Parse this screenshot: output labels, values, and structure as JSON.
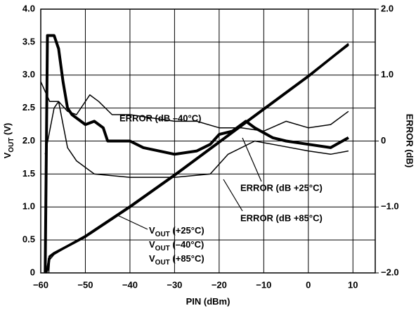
{
  "chart_data": {
    "type": "line",
    "x_label": {
      "main": "PIN",
      "rest": " (dBm)"
    },
    "y_label": {
      "main": "V",
      "sub": "OUT",
      "rest": " (V)"
    },
    "y2_label": "ERROR (dB)",
    "xlim": [
      -60,
      15
    ],
    "ylim": [
      0,
      4
    ],
    "y2lim": [
      -2,
      2
    ],
    "grid": true,
    "xticks": [
      {
        "value": -60,
        "label": "−60"
      },
      {
        "value": -50,
        "label": "−50"
      },
      {
        "value": -40,
        "label": "−40"
      },
      {
        "value": -30,
        "label": "−30"
      },
      {
        "value": -20,
        "label": "−20"
      },
      {
        "value": -10,
        "label": "−10"
      },
      0,
      10
    ],
    "yticks": [
      0,
      0.5,
      {
        "value": 1,
        "label": "1.0"
      },
      1.5,
      {
        "value": 2,
        "label": "2.0"
      },
      2.5,
      {
        "value": 3,
        "label": "3.0"
      },
      3.5,
      {
        "value": 4,
        "label": "4.0"
      }
    ],
    "y2ticks": [
      {
        "value": -2,
        "label": "−2.0"
      },
      {
        "value": -1,
        "label": "−1.0"
      },
      0,
      {
        "value": 1,
        "label": "1.0"
      },
      {
        "value": 2,
        "label": "2.0"
      }
    ],
    "series": [
      {
        "color": "#000000",
        "width": 3.5,
        "x": [
          -59,
          -58.5,
          -58,
          -57,
          -55,
          -50,
          -40,
          -30,
          -20,
          -10,
          0,
          9
        ],
        "values": [
          0,
          0.05,
          0.25,
          0.3,
          0.37,
          0.55,
          1.0,
          1.48,
          1.98,
          2.48,
          2.98,
          3.47
        ]
      },
      {
        "color": "#000000",
        "width": 1.5,
        "x": [
          -58.2,
          -58,
          -57,
          -55,
          -50,
          -40,
          -30,
          -20,
          -10,
          0,
          9
        ],
        "values": [
          0,
          0.2,
          0.28,
          0.36,
          0.55,
          1.0,
          1.48,
          1.98,
          2.48,
          2.98,
          3.45
        ]
      },
      {
        "color": "#000000",
        "width": 1.5,
        "x": [
          -58.6,
          -58.3,
          -57,
          -55,
          -50,
          -40,
          -30,
          -20,
          -10,
          0,
          9
        ],
        "values": [
          0,
          0.22,
          0.3,
          0.38,
          0.57,
          1.02,
          1.5,
          2.0,
          2.5,
          3.0,
          3.48
        ]
      },
      {
        "axis": "y2",
        "color": "#000000",
        "width": 4,
        "x": [
          -59,
          -58.5,
          -57,
          -56,
          -55,
          -54,
          -53,
          -50,
          -48,
          -46,
          -45,
          -40,
          -37,
          -30,
          -25,
          -22,
          -20,
          -17,
          -14,
          -12,
          -8,
          -5,
          0,
          5,
          9
        ],
        "values": [
          -2,
          1.6,
          1.6,
          1.4,
          0.9,
          0.5,
          0.4,
          0.25,
          0.3,
          0.2,
          0.0,
          0.0,
          -0.1,
          -0.2,
          -0.15,
          -0.05,
          0.1,
          0.15,
          0.3,
          0.2,
          0.05,
          0.0,
          -0.05,
          -0.1,
          0.05
        ]
      },
      {
        "axis": "y2",
        "color": "#000000",
        "width": 1.5,
        "x": [
          -60,
          -58,
          -56,
          -54,
          -52,
          -49,
          -47,
          -44,
          -40,
          -35,
          -30,
          -25,
          -20,
          -15,
          -10,
          -5,
          0,
          5,
          9
        ],
        "values": [
          0.9,
          0.6,
          0.6,
          0.45,
          0.4,
          0.7,
          0.6,
          0.4,
          0.4,
          0.35,
          0.3,
          0.3,
          0.2,
          0.2,
          0.15,
          0.3,
          0.2,
          0.25,
          0.45
        ]
      },
      {
        "axis": "y2",
        "color": "#000000",
        "width": 1.5,
        "x": [
          -59,
          -57,
          -56,
          -54,
          -52,
          -48,
          -40,
          -30,
          -22,
          -18,
          -12,
          -8,
          0,
          5,
          9
        ],
        "values": [
          -0.2,
          0.5,
          0.6,
          -0.1,
          -0.3,
          -0.5,
          -0.55,
          -0.55,
          -0.5,
          -0.2,
          0.0,
          -0.05,
          -0.15,
          -0.2,
          -0.15
        ]
      }
    ],
    "annotations": [
      {
        "text": "ERROR (dB –40°C)"
      },
      {
        "text": "ERROR (dB +25°C)"
      },
      {
        "text": "ERROR (dB +85°C)"
      },
      {
        "main": "V",
        "sub": "OUT",
        "rest": " (+25°C)"
      },
      {
        "main": "V",
        "sub": "OUT",
        "rest": " (–40°C)"
      },
      {
        "main": "V",
        "sub": "OUT",
        "rest": " (+85°C)"
      }
    ]
  }
}
